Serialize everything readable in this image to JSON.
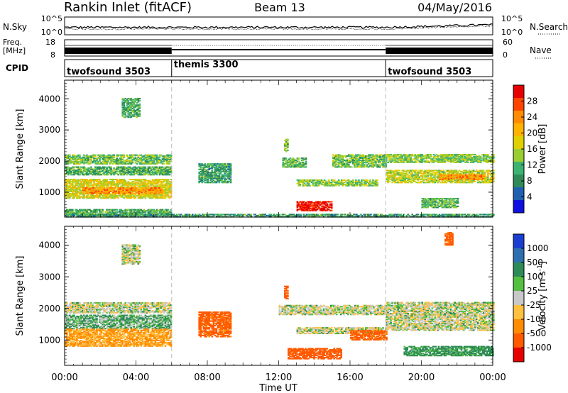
{
  "header": {
    "station": "Rankin Inlet (fitACF)",
    "beam": "Beam 13",
    "date": "04/May/2016"
  },
  "noise_panel": {
    "left_label": "N.Sky",
    "right_label": "N.Search",
    "left_ticks": [
      "10^5",
      "10^0"
    ],
    "right_ticks": [
      "10^5",
      "10^0"
    ]
  },
  "freq_panel": {
    "left_label_top": "Freq.",
    "left_label_unit": "[MHz]",
    "right_label": "Nave",
    "left_ticks": [
      "18",
      "8"
    ],
    "right_ticks": [
      "60",
      "0"
    ]
  },
  "cpid_panel": {
    "label": "CPID",
    "segments": [
      {
        "name": "twofsound 3503",
        "start_hour": 0,
        "end_hour": 6
      },
      {
        "name": "themis 3300",
        "start_hour": 6,
        "end_hour": 18
      },
      {
        "name": "twofsound 3503",
        "start_hour": 18,
        "end_hour": 24
      }
    ]
  },
  "x_axis": {
    "label": "Time UT",
    "ticks": [
      "00:00",
      "04:00",
      "08:00",
      "12:00",
      "16:00",
      "20:00",
      "00:00"
    ]
  },
  "power_colorbar": {
    "label": "Power [dB]",
    "ticks": [
      "28",
      "24",
      "20",
      "16",
      "12",
      "8",
      "4"
    ],
    "colors": [
      "#e60000",
      "#ff4400",
      "#ff8c00",
      "#ffb300",
      "#e0d000",
      "#9acd32",
      "#3cb371",
      "#2e8b57",
      "#2060b0",
      "#1010e0"
    ]
  },
  "velocity_colorbar": {
    "label": "Velocity [m s^-1]",
    "ticks": [
      "1000",
      "500",
      "100",
      "25",
      "-25",
      "-100",
      "-500",
      "-1000"
    ],
    "colors": [
      "#1a3fd0",
      "#2e6fb0",
      "#2e8b57",
      "#55c040",
      "#c8c8c8",
      "#ffc040",
      "#ff8c00",
      "#ff5a00",
      "#e60000"
    ]
  },
  "chart_data": [
    {
      "type": "heatmap",
      "name": "power",
      "ylabel": "Slant Range [km]",
      "xlabel": "",
      "y_ticks": [
        1000,
        2000,
        3000,
        4000
      ],
      "ylim": [
        200,
        4600
      ],
      "xlim_hours": [
        0,
        24
      ],
      "colorbar_range_db": [
        0,
        30
      ],
      "regions": [
        {
          "t0": 0.0,
          "t1": 6.0,
          "r0": 1900,
          "r1": 2200,
          "level": 12
        },
        {
          "t0": 0.0,
          "t1": 6.0,
          "r0": 1550,
          "r1": 1800,
          "level": 10
        },
        {
          "t0": 0.0,
          "t1": 6.0,
          "r0": 800,
          "r1": 1400,
          "level": 16
        },
        {
          "t0": 1.0,
          "t1": 5.5,
          "r0": 950,
          "r1": 1150,
          "level": 22
        },
        {
          "t0": 0.0,
          "t1": 6.0,
          "r0": 250,
          "r1": 450,
          "level": 10
        },
        {
          "t0": 3.2,
          "t1": 4.2,
          "r0": 3400,
          "r1": 4000,
          "level": 10
        },
        {
          "t0": 7.5,
          "t1": 9.3,
          "r0": 1300,
          "r1": 1900,
          "level": 9
        },
        {
          "t0": 12.2,
          "t1": 13.5,
          "r0": 1800,
          "r1": 2100,
          "level": 11
        },
        {
          "t0": 12.3,
          "t1": 12.5,
          "r0": 2300,
          "r1": 2700,
          "level": 12
        },
        {
          "t0": 13.0,
          "t1": 15.0,
          "r0": 400,
          "r1": 700,
          "level": 28
        },
        {
          "t0": 13.0,
          "t1": 17.5,
          "r0": 1200,
          "r1": 1400,
          "level": 13
        },
        {
          "t0": 15.0,
          "t1": 18.0,
          "r0": 1800,
          "r1": 2200,
          "level": 12
        },
        {
          "t0": 18.0,
          "t1": 24.0,
          "r0": 1950,
          "r1": 2200,
          "level": 13
        },
        {
          "t0": 18.0,
          "t1": 24.0,
          "r0": 1300,
          "r1": 1700,
          "level": 15
        },
        {
          "t0": 21.0,
          "t1": 23.5,
          "r0": 1400,
          "r1": 1550,
          "level": 22
        },
        {
          "t0": 20.0,
          "t1": 22.0,
          "r0": 500,
          "r1": 800,
          "level": 11
        },
        {
          "t0": 0.0,
          "t1": 24.0,
          "r0": 200,
          "r1": 300,
          "level": 9
        }
      ]
    },
    {
      "type": "heatmap",
      "name": "velocity",
      "ylabel": "Slant Range [km]",
      "xlabel": "Time UT",
      "y_ticks": [
        1000,
        2000,
        3000,
        4000
      ],
      "ylim": [
        200,
        4600
      ],
      "xlim_hours": [
        0,
        24
      ],
      "colorbar_range_ms": [
        -1000,
        1000
      ],
      "regions": [
        {
          "t0": 0.0,
          "t1": 6.0,
          "r0": 1850,
          "r1": 2200,
          "vel": 0
        },
        {
          "t0": 0.0,
          "t1": 6.0,
          "r0": 1350,
          "r1": 1800,
          "vel": 60
        },
        {
          "t0": 0.0,
          "t1": 6.0,
          "r0": 800,
          "r1": 1350,
          "vel": -120
        },
        {
          "t0": 3.2,
          "t1": 4.2,
          "r0": 3400,
          "r1": 4000,
          "vel": 0
        },
        {
          "t0": 7.5,
          "t1": 9.3,
          "r0": 1100,
          "r1": 1900,
          "vel": -400
        },
        {
          "t0": 12.3,
          "t1": 12.5,
          "r0": 2300,
          "r1": 2700,
          "vel": -400
        },
        {
          "t0": 12.0,
          "t1": 18.0,
          "r0": 1800,
          "r1": 2100,
          "vel": 0
        },
        {
          "t0": 13.0,
          "t1": 18.0,
          "r0": 1200,
          "r1": 1400,
          "vel": 0
        },
        {
          "t0": 12.5,
          "t1": 15.5,
          "r0": 400,
          "r1": 750,
          "vel": -500
        },
        {
          "t0": 16.0,
          "t1": 18.0,
          "r0": 1000,
          "r1": 1300,
          "vel": -400
        },
        {
          "t0": 18.0,
          "t1": 24.0,
          "r0": 1300,
          "r1": 2200,
          "vel": 0
        },
        {
          "t0": 19.0,
          "t1": 24.0,
          "r0": 500,
          "r1": 800,
          "vel": 100
        },
        {
          "t0": 21.3,
          "t1": 21.7,
          "r0": 4000,
          "r1": 4400,
          "vel": -400
        }
      ]
    }
  ]
}
